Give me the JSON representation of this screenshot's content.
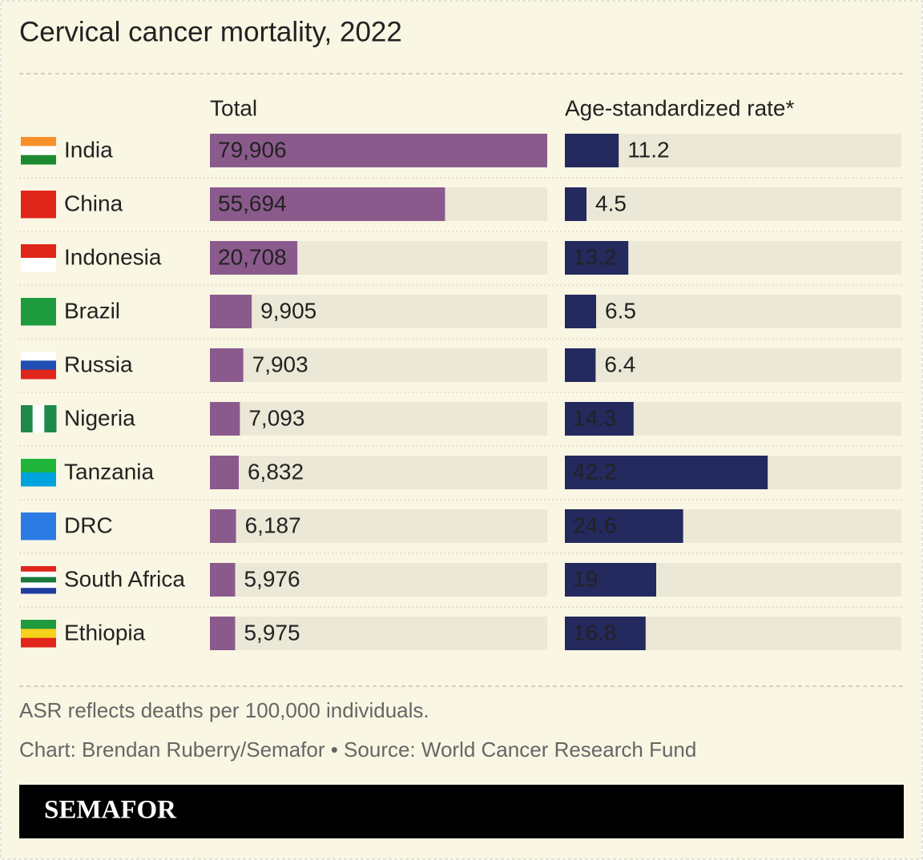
{
  "chart_data": {
    "type": "bar",
    "title": "Cervical cancer mortality, 2022",
    "categories": [
      "India",
      "China",
      "Indonesia",
      "Brazil",
      "Russia",
      "Nigeria",
      "Tanzania",
      "DRC",
      "South Africa",
      "Ethiopia"
    ],
    "series": [
      {
        "name": "Total",
        "color": "#8b5a8c",
        "xlim": [
          0,
          79906
        ],
        "values": [
          79906,
          55694,
          20708,
          9905,
          7903,
          7093,
          6832,
          6187,
          5976,
          5975
        ],
        "value_labels": [
          "79,906",
          "55,694",
          "20,708",
          "9,905",
          "7,903",
          "7,093",
          "6,832",
          "6,187",
          "5,976",
          "5,975"
        ]
      },
      {
        "name": "Age-standardized rate*",
        "color": "#24295e",
        "xlim": [
          0,
          70
        ],
        "values": [
          11.2,
          4.5,
          13.2,
          6.5,
          6.4,
          14.3,
          42.2,
          24.6,
          19,
          16.8
        ]
      }
    ],
    "note": "ASR reflects deaths per 100,000 individuals.",
    "credit": "Chart: Brendan Ruberry/Semafor • Source: World Cancer Research Fund",
    "brand": "SEMAFOR"
  }
}
